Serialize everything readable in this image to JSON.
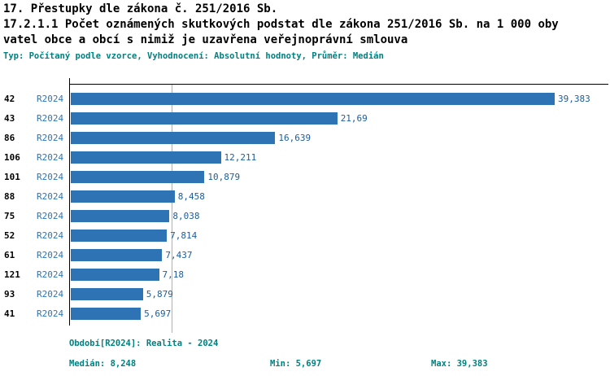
{
  "header": {
    "chapter_title": "17. Přestupky dle zákona č. 251/2016 Sb.",
    "indicator_title_line1": "17.2.1.1 Počet oznámených skutkových podstat dle zákona 251/2016 Sb. na 1 000 oby",
    "indicator_title_line2": "vatel obce a obcí s nimiž je uzavřena veřejnoprávní smlouva",
    "meta": "Typ: Počítaný podle vzorce, Vyhodnocení: Absolutní hodnoty, Průměr: Medián"
  },
  "chart_data": {
    "type": "bar",
    "orientation": "horizontal",
    "title": "17.2.1.1 Počet oznámených skutkových podstat dle zákona 251/2016 Sb. na 1 000 obyvatel obce a obcí s nimiž je uzavřena veřejnoprávní smlouva",
    "categories": [
      "42",
      "43",
      "86",
      "106",
      "101",
      "88",
      "75",
      "52",
      "61",
      "121",
      "93",
      "41"
    ],
    "series_period": "R2024",
    "rows": [
      {
        "id": "42",
        "period": "R2024",
        "value": 39.383,
        "label": "39,383"
      },
      {
        "id": "43",
        "period": "R2024",
        "value": 21.69,
        "label": "21,69"
      },
      {
        "id": "86",
        "period": "R2024",
        "value": 16.639,
        "label": "16,639"
      },
      {
        "id": "106",
        "period": "R2024",
        "value": 12.211,
        "label": "12,211"
      },
      {
        "id": "101",
        "period": "R2024",
        "value": 10.879,
        "label": "10,879"
      },
      {
        "id": "88",
        "period": "R2024",
        "value": 8.458,
        "label": "8,458"
      },
      {
        "id": "75",
        "period": "R2024",
        "value": 8.038,
        "label": "8,038"
      },
      {
        "id": "52",
        "period": "R2024",
        "value": 7.814,
        "label": "7,814"
      },
      {
        "id": "61",
        "period": "R2024",
        "value": 7.437,
        "label": "7,437"
      },
      {
        "id": "121",
        "period": "R2024",
        "value": 7.18,
        "label": "7,18"
      },
      {
        "id": "93",
        "period": "R2024",
        "value": 5.879,
        "label": "5,879"
      },
      {
        "id": "41",
        "period": "R2024",
        "value": 5.697,
        "label": "5,697"
      }
    ],
    "xlim": [
      0,
      39.383
    ],
    "xmax": 39.383,
    "median": 8.248,
    "min": 5.697,
    "max": 39.383,
    "grid": "median-line-only",
    "colors": {
      "bar": "#2e74b4",
      "value_label": "#1c5d9b",
      "period_label": "#2e74b4",
      "median_line": "#a8b2ba",
      "accent_teal": "#008080"
    }
  },
  "footer": {
    "period_info": "Období[R2024]: Realita - 2024",
    "median": "Medián: 8,248",
    "min": "Min: 5,697",
    "max": "Max: 39,383"
  }
}
